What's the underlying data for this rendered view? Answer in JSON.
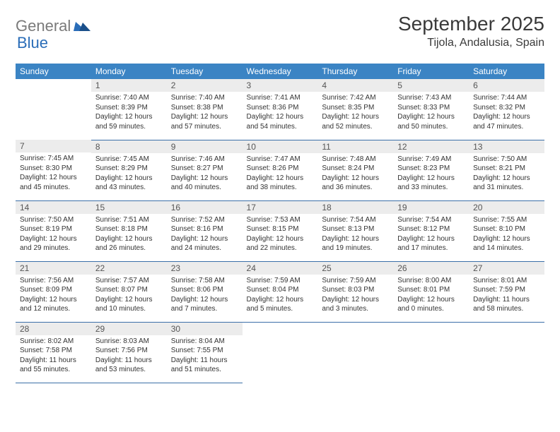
{
  "brand": {
    "part1": "General",
    "part2": "Blue"
  },
  "title": "September 2025",
  "location": "Tijola, Andalusia, Spain",
  "colors": {
    "header_bg": "#3b84c4",
    "header_text": "#ffffff",
    "daybar_bg": "#ececec",
    "row_border": "#3b6fa8",
    "logo_gray": "#7a7a7a",
    "logo_blue": "#2a6db8",
    "text": "#333333"
  },
  "fonts": {
    "title_size": 28,
    "location_size": 16,
    "header_size": 12,
    "daynum_size": 12,
    "body_size": 10
  },
  "weekdays": [
    "Sunday",
    "Monday",
    "Tuesday",
    "Wednesday",
    "Thursday",
    "Friday",
    "Saturday"
  ],
  "weeks": [
    [
      null,
      {
        "n": "1",
        "sr": "7:40 AM",
        "ss": "8:39 PM",
        "dl": "12 hours and 59 minutes."
      },
      {
        "n": "2",
        "sr": "7:40 AM",
        "ss": "8:38 PM",
        "dl": "12 hours and 57 minutes."
      },
      {
        "n": "3",
        "sr": "7:41 AM",
        "ss": "8:36 PM",
        "dl": "12 hours and 54 minutes."
      },
      {
        "n": "4",
        "sr": "7:42 AM",
        "ss": "8:35 PM",
        "dl": "12 hours and 52 minutes."
      },
      {
        "n": "5",
        "sr": "7:43 AM",
        "ss": "8:33 PM",
        "dl": "12 hours and 50 minutes."
      },
      {
        "n": "6",
        "sr": "7:44 AM",
        "ss": "8:32 PM",
        "dl": "12 hours and 47 minutes."
      }
    ],
    [
      {
        "n": "7",
        "sr": "7:45 AM",
        "ss": "8:30 PM",
        "dl": "12 hours and 45 minutes."
      },
      {
        "n": "8",
        "sr": "7:45 AM",
        "ss": "8:29 PM",
        "dl": "12 hours and 43 minutes."
      },
      {
        "n": "9",
        "sr": "7:46 AM",
        "ss": "8:27 PM",
        "dl": "12 hours and 40 minutes."
      },
      {
        "n": "10",
        "sr": "7:47 AM",
        "ss": "8:26 PM",
        "dl": "12 hours and 38 minutes."
      },
      {
        "n": "11",
        "sr": "7:48 AM",
        "ss": "8:24 PM",
        "dl": "12 hours and 36 minutes."
      },
      {
        "n": "12",
        "sr": "7:49 AM",
        "ss": "8:23 PM",
        "dl": "12 hours and 33 minutes."
      },
      {
        "n": "13",
        "sr": "7:50 AM",
        "ss": "8:21 PM",
        "dl": "12 hours and 31 minutes."
      }
    ],
    [
      {
        "n": "14",
        "sr": "7:50 AM",
        "ss": "8:19 PM",
        "dl": "12 hours and 29 minutes."
      },
      {
        "n": "15",
        "sr": "7:51 AM",
        "ss": "8:18 PM",
        "dl": "12 hours and 26 minutes."
      },
      {
        "n": "16",
        "sr": "7:52 AM",
        "ss": "8:16 PM",
        "dl": "12 hours and 24 minutes."
      },
      {
        "n": "17",
        "sr": "7:53 AM",
        "ss": "8:15 PM",
        "dl": "12 hours and 22 minutes."
      },
      {
        "n": "18",
        "sr": "7:54 AM",
        "ss": "8:13 PM",
        "dl": "12 hours and 19 minutes."
      },
      {
        "n": "19",
        "sr": "7:54 AM",
        "ss": "8:12 PM",
        "dl": "12 hours and 17 minutes."
      },
      {
        "n": "20",
        "sr": "7:55 AM",
        "ss": "8:10 PM",
        "dl": "12 hours and 14 minutes."
      }
    ],
    [
      {
        "n": "21",
        "sr": "7:56 AM",
        "ss": "8:09 PM",
        "dl": "12 hours and 12 minutes."
      },
      {
        "n": "22",
        "sr": "7:57 AM",
        "ss": "8:07 PM",
        "dl": "12 hours and 10 minutes."
      },
      {
        "n": "23",
        "sr": "7:58 AM",
        "ss": "8:06 PM",
        "dl": "12 hours and 7 minutes."
      },
      {
        "n": "24",
        "sr": "7:59 AM",
        "ss": "8:04 PM",
        "dl": "12 hours and 5 minutes."
      },
      {
        "n": "25",
        "sr": "7:59 AM",
        "ss": "8:03 PM",
        "dl": "12 hours and 3 minutes."
      },
      {
        "n": "26",
        "sr": "8:00 AM",
        "ss": "8:01 PM",
        "dl": "12 hours and 0 minutes."
      },
      {
        "n": "27",
        "sr": "8:01 AM",
        "ss": "7:59 PM",
        "dl": "11 hours and 58 minutes."
      }
    ],
    [
      {
        "n": "28",
        "sr": "8:02 AM",
        "ss": "7:58 PM",
        "dl": "11 hours and 55 minutes."
      },
      {
        "n": "29",
        "sr": "8:03 AM",
        "ss": "7:56 PM",
        "dl": "11 hours and 53 minutes."
      },
      {
        "n": "30",
        "sr": "8:04 AM",
        "ss": "7:55 PM",
        "dl": "11 hours and 51 minutes."
      },
      null,
      null,
      null,
      null
    ]
  ],
  "labels": {
    "sunrise": "Sunrise:",
    "sunset": "Sunset:",
    "daylight": "Daylight:"
  }
}
